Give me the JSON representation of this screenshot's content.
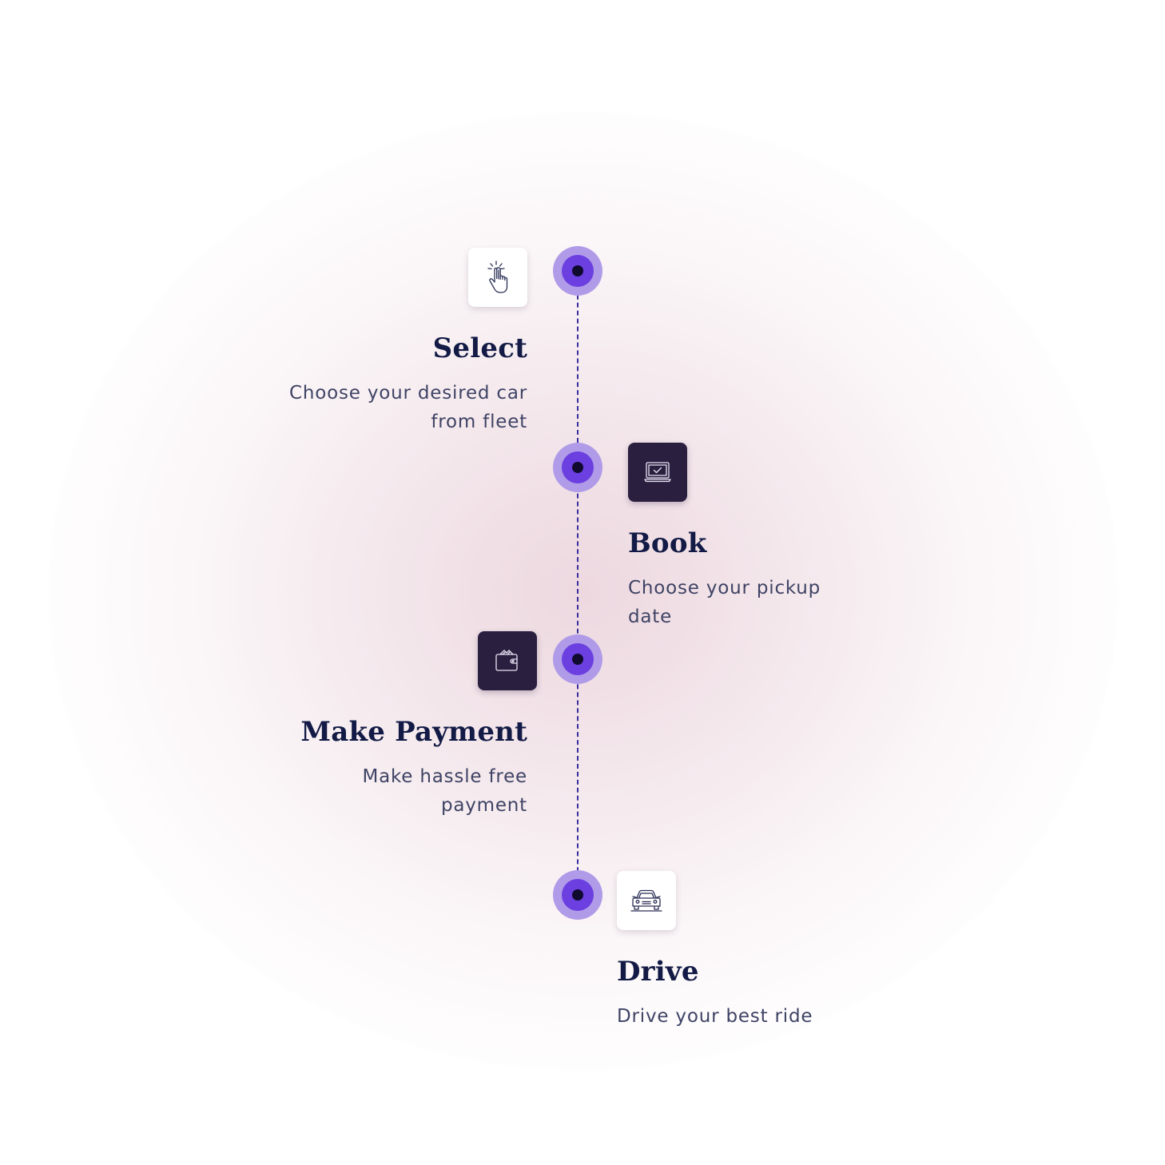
{
  "steps": [
    {
      "title": "Select",
      "description": "Choose your desired car from fleet",
      "icon": "hand-pointer-icon"
    },
    {
      "title": "Book",
      "description": "Choose your pickup date",
      "icon": "laptop-check-icon"
    },
    {
      "title": "Make Payment",
      "description": "Make hassle free payment",
      "icon": "wallet-icon"
    },
    {
      "title": "Drive",
      "description": "Drive your best ride",
      "icon": "car-icon"
    }
  ],
  "colors": {
    "title": "#121a45",
    "description": "#3f4365",
    "node_outer": "#b09be8",
    "node_ring": "#6b3fe0",
    "node_dot": "#0f0a2e",
    "dark_tile": "#2b1f40",
    "line": "#3a2fa0"
  }
}
